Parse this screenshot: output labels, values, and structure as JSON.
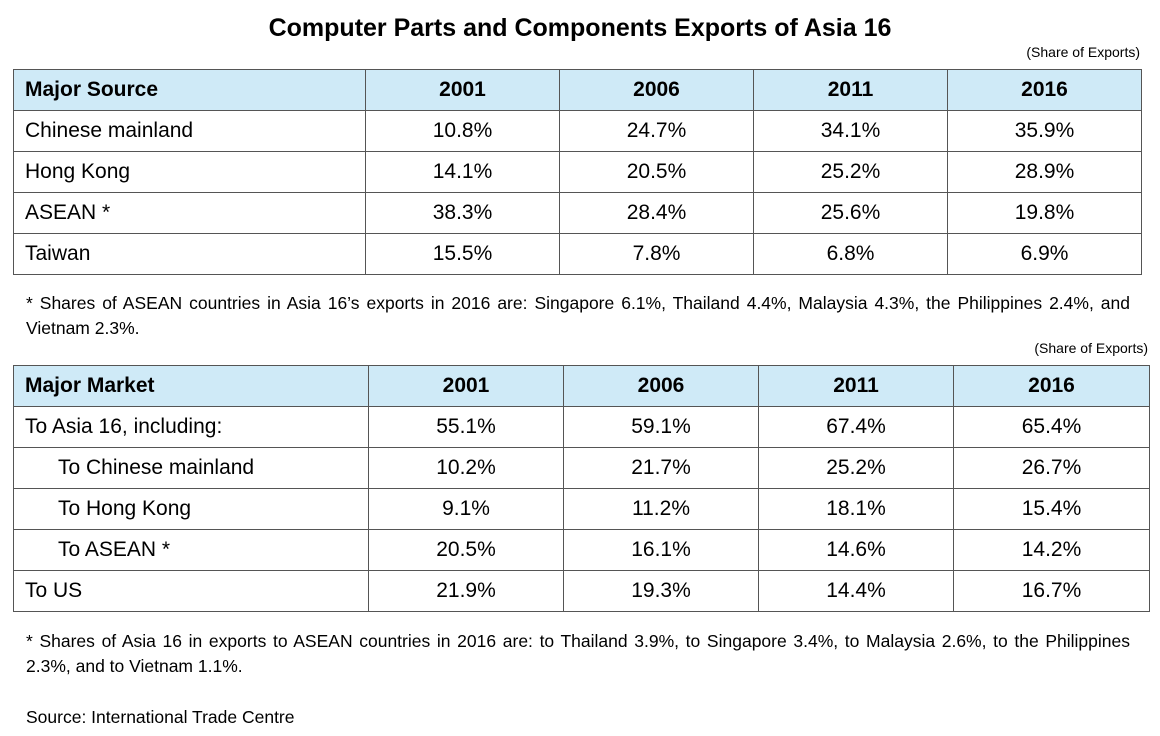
{
  "title": "Computer Parts and Components Exports of Asia 16",
  "source_table": {
    "unit": "(Share of Exports)",
    "headers": [
      "Major Source",
      "2001",
      "2006",
      "2011",
      "2016"
    ],
    "rows": [
      {
        "label": "Chinese mainland",
        "values": [
          "10.8%",
          "24.7%",
          "34.1%",
          "35.9%"
        ]
      },
      {
        "label": "Hong Kong",
        "values": [
          "14.1%",
          "20.5%",
          "25.2%",
          "28.9%"
        ]
      },
      {
        "label": "ASEAN *",
        "values": [
          "38.3%",
          "28.4%",
          "25.6%",
          "19.8%"
        ]
      },
      {
        "label": "Taiwan",
        "values": [
          "15.5%",
          "7.8%",
          "6.8%",
          "6.9%"
        ]
      }
    ],
    "note": "* Shares of ASEAN countries in Asia 16’s exports in 2016 are: Singapore 6.1%, Thailand 4.4%, Malaysia 4.3%, the Philippines 2.4%, and Vietnam 2.3%."
  },
  "market_table": {
    "unit": "(Share of Exports)",
    "headers": [
      "Major Market",
      "2001",
      "2006",
      "2011",
      "2016"
    ],
    "rows": [
      {
        "label": "To Asia 16, including:",
        "values": [
          "55.1%",
          "59.1%",
          "67.4%",
          "65.4%"
        ]
      },
      {
        "label": "To Chinese mainland",
        "values": [
          "10.2%",
          "21.7%",
          "25.2%",
          "26.7%"
        ]
      },
      {
        "label": "To Hong Kong",
        "values": [
          "9.1%",
          "11.2%",
          "18.1%",
          "15.4%"
        ]
      },
      {
        "label": "To ASEAN *",
        "values": [
          "20.5%",
          "16.1%",
          "14.6%",
          "14.2%"
        ]
      },
      {
        "label": "To US",
        "values": [
          "21.9%",
          "19.3%",
          "14.4%",
          "16.7%"
        ]
      }
    ],
    "note": "* Shares of Asia 16 in exports to ASEAN countries in 2016 are: to Thailand 3.9%, to Singapore 3.4%, to Malaysia 2.6%, to the Philippines 2.3%, and to Vietnam 1.1%."
  },
  "source": "Source: International Trade Centre"
}
